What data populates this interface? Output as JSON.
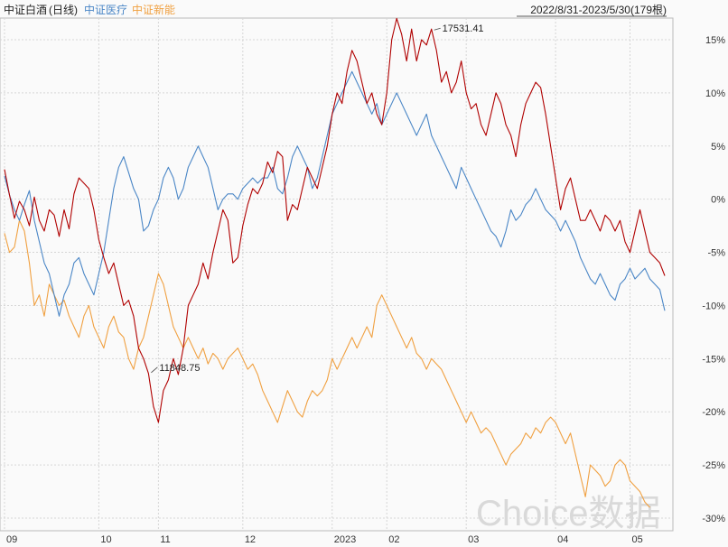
{
  "header": {
    "series_names": [
      "中证白酒",
      "(日线)",
      "中证医疗",
      "中证新能"
    ],
    "range": "2022/8/31-2023/5/30(179根)"
  },
  "watermark": "Choice数据",
  "colors": {
    "baijiu": "#b00000",
    "yiliao": "#4a86c6",
    "xinneng": "#f0a040"
  },
  "chart_data": {
    "type": "line",
    "ylim": [
      -30,
      17
    ],
    "yticks": [
      15,
      10,
      5,
      0,
      -5,
      -10,
      -15,
      -20,
      -25,
      -30
    ],
    "ytick_labels": [
      "15%",
      "10%",
      "5%",
      "0%",
      "-5%",
      "-10%",
      "-15%",
      "-20%",
      "-25%",
      "-30%"
    ],
    "xticks": [
      {
        "label": "09",
        "i": 0
      },
      {
        "label": "10",
        "i": 19
      },
      {
        "label": "11",
        "i": 31
      },
      {
        "label": "12",
        "i": 48
      },
      {
        "label": "2023",
        "i": 66
      },
      {
        "label": "02",
        "i": 77
      },
      {
        "label": "03",
        "i": 93
      },
      {
        "label": "04",
        "i": 111
      },
      {
        "label": "05",
        "i": 126
      }
    ],
    "annotations": [
      {
        "text": "17531.41",
        "series": 0,
        "i": 86,
        "dir": "right"
      },
      {
        "text": "11848.75",
        "series": 0,
        "i": 29,
        "dir": "right"
      }
    ],
    "series": [
      {
        "name": "中证白酒",
        "color": "#b00000",
        "values": [
          2.8,
          0.4,
          -1.8,
          -0.2,
          -1,
          -2.5,
          0.2,
          -2,
          -3,
          -1,
          -1.5,
          -3.5,
          -1,
          -2.8,
          0.5,
          2,
          1.5,
          1,
          -1,
          -3.8,
          -5.5,
          -7,
          -6,
          -8,
          -10,
          -9.5,
          -11,
          -14,
          -15,
          -16.4,
          -19.5,
          -21,
          -18,
          -17,
          -15,
          -16.5,
          -14,
          -10,
          -9,
          -8,
          -6,
          -7.5,
          -5,
          -3,
          -1,
          -2,
          -6,
          -5.5,
          -2.5,
          -0.5,
          1,
          0.5,
          1.5,
          3.5,
          2.5,
          4.5,
          4,
          -2,
          -0.5,
          -1,
          1,
          3,
          2,
          1,
          3,
          5,
          8,
          10,
          9,
          12,
          14,
          13,
          11,
          9,
          10,
          8,
          7,
          10,
          15,
          17,
          15.5,
          13,
          16,
          13,
          15,
          14.5,
          16,
          14,
          11,
          12,
          10,
          11,
          13,
          10,
          8.5,
          9,
          7,
          6,
          8,
          10,
          9,
          7,
          6,
          4,
          7,
          9,
          10,
          11,
          10.5,
          8,
          5,
          2,
          -1,
          1,
          2,
          0,
          -2,
          -2,
          -1,
          -2,
          -3,
          -1.5,
          -2,
          -3,
          -2,
          -4,
          -5,
          -3,
          -1,
          -3,
          -5,
          -5.5,
          -6,
          -7.2
        ]
      },
      {
        "name": "中证医疗",
        "color": "#4a86c6",
        "values": [
          2.2,
          0.4,
          -1,
          -2,
          -0.5,
          0.8,
          -2,
          -4,
          -6,
          -7,
          -9,
          -11,
          -9,
          -8,
          -6,
          -5.5,
          -7,
          -8,
          -9,
          -7,
          -5,
          -2,
          1,
          3,
          4,
          2.5,
          1,
          0,
          -3,
          -2.5,
          -1,
          0,
          2,
          3,
          2,
          0,
          1,
          3,
          4,
          5,
          4,
          3,
          1,
          -1,
          0,
          0.5,
          0.5,
          0,
          1,
          1.5,
          2,
          1.5,
          2,
          2,
          3,
          1,
          0.5,
          2,
          4,
          5,
          4,
          3,
          1,
          2,
          4,
          6,
          8,
          9,
          10,
          11,
          12,
          11,
          10,
          9,
          8,
          9,
          7,
          8,
          9,
          10,
          9,
          8,
          7,
          6,
          7,
          8,
          6,
          5,
          4,
          3,
          2,
          1,
          3,
          2,
          1,
          0,
          -1,
          -2,
          -3,
          -3.5,
          -4.5,
          -3,
          -1,
          -2,
          -1.5,
          -0.5,
          0,
          1,
          0,
          -1,
          -1.5,
          -2,
          -3,
          -2,
          -3,
          -4,
          -5.5,
          -6.5,
          -7.5,
          -8,
          -7,
          -8,
          -9,
          -9.5,
          -8,
          -7.5,
          -6.5,
          -7.5,
          -7,
          -6.5,
          -7.5,
          -8,
          -8.5,
          -10.5
        ]
      },
      {
        "name": "中证新能",
        "color": "#f0a040",
        "values": [
          -3.2,
          -5,
          -4.5,
          -2,
          -3,
          -6,
          -10,
          -9,
          -11,
          -8,
          -9,
          -10,
          -9.5,
          -11,
          -12,
          -13,
          -11,
          -10,
          -12,
          -13,
          -14,
          -12,
          -11,
          -12.5,
          -13,
          -15,
          -16,
          -14,
          -13,
          -11,
          -9,
          -7,
          -8,
          -10,
          -12,
          -13,
          -14,
          -13,
          -14,
          -15,
          -14,
          -15.5,
          -14.5,
          -15,
          -16,
          -15,
          -14.5,
          -14,
          -15,
          -16,
          -15.5,
          -16.5,
          -18,
          -19,
          -20,
          -21,
          -19.5,
          -18,
          -19,
          -20,
          -20.5,
          -19,
          -18,
          -18.5,
          -18,
          -17,
          -15,
          -16,
          -15,
          -14,
          -13,
          -14,
          -13,
          -12,
          -13,
          -10,
          -9,
          -10,
          -11,
          -12,
          -13,
          -14,
          -13,
          -14.5,
          -15,
          -16,
          -15,
          -15.5,
          -16,
          -17,
          -18,
          -19,
          -20,
          -21,
          -20,
          -21,
          -22,
          -21.5,
          -22,
          -23,
          -24,
          -25,
          -24,
          -23.5,
          -23,
          -22,
          -22.5,
          -21.5,
          -22,
          -21,
          -20.5,
          -21,
          -22,
          -23,
          -22,
          -24,
          -26,
          -28,
          -25,
          -25.5,
          -26,
          -27,
          -26.5,
          -25,
          -24.5,
          -25,
          -26.5,
          -27,
          -27.5,
          -28.5,
          -29
        ]
      }
    ]
  }
}
